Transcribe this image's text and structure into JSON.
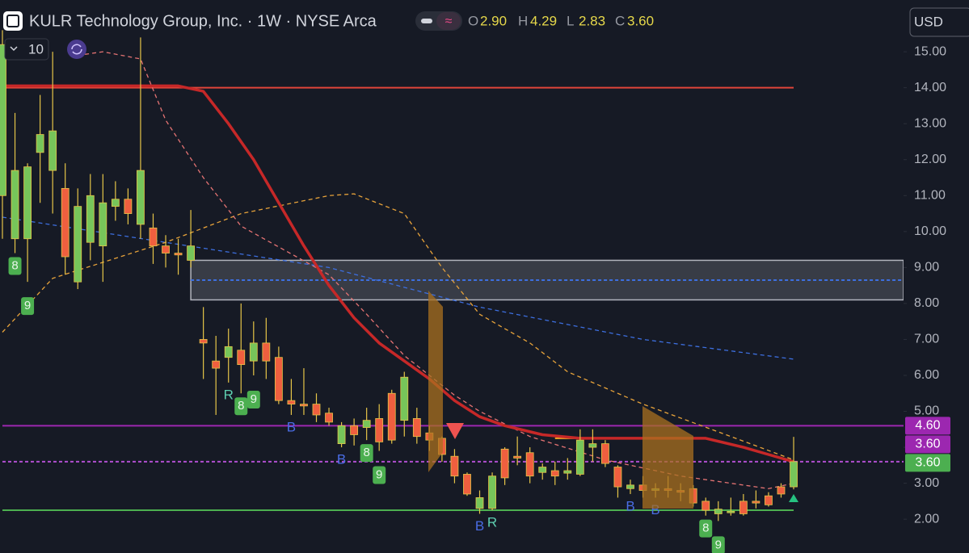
{
  "chart_data": {
    "type": "candlestick",
    "title": "KULR Technology Group, Inc. · 1W · NYSE Arca",
    "legend_keys": [
      "O",
      "H",
      "L",
      "C"
    ],
    "legend_values": [
      "2.90",
      "4.29",
      "2.83",
      "3.60"
    ],
    "interval_box": "10",
    "currency": "USD",
    "up_color": "#77c55a",
    "down_color": "#ef5f3f",
    "wick_color": "#e6c548",
    "open": [
      11.0,
      9.8,
      9.8,
      12.2,
      11.7,
      11.2,
      8.6,
      9.7,
      9.6,
      10.7,
      10.9,
      10.2,
      10.1,
      9.6,
      9.4,
      9.2,
      7.0,
      6.4,
      6.5,
      6.7,
      6.4,
      6.9,
      6.5,
      5.3,
      5.2,
      5.2,
      4.95,
      4.1,
      4.6,
      4.55,
      4.8,
      5.5,
      4.75,
      4.8,
      4.4,
      4.25,
      3.75,
      3.25,
      2.3,
      2.3,
      3.95,
      3.75,
      3.85,
      3.3,
      3.35,
      3.28,
      3.25,
      4.0,
      4.1,
      3.45,
      2.85,
      2.95,
      2.8,
      2.85,
      2.8,
      2.85,
      2.5,
      2.15,
      2.18,
      2.5,
      2.5,
      2.65,
      2.9,
      2.9
    ],
    "high": [
      15.6,
      13.3,
      11.9,
      13.8,
      15.0,
      11.9,
      11.2,
      11.6,
      11.6,
      11.4,
      11.2,
      15.4,
      10.5,
      9.9,
      9.8,
      10.6,
      7.9,
      7.1,
      7.3,
      8.0,
      7.5,
      7.6,
      6.8,
      5.9,
      6.2,
      5.5,
      5.1,
      4.7,
      4.8,
      5.1,
      5.2,
      5.6,
      6.1,
      5.1,
      4.6,
      4.3,
      3.95,
      3.3,
      2.8,
      3.3,
      4.0,
      4.3,
      4.0,
      3.55,
      3.6,
      3.7,
      4.5,
      4.5,
      4.2,
      3.5,
      3.1,
      3.2,
      3.0,
      3.2,
      3.0,
      2.95,
      2.6,
      2.5,
      2.6,
      2.7,
      2.8,
      2.75,
      3.0,
      4.29
    ],
    "low": [
      9.8,
      9.4,
      8.6,
      10.8,
      10.5,
      8.8,
      8.4,
      9.2,
      8.6,
      10.3,
      10.2,
      9.8,
      9.1,
      9.0,
      8.8,
      9.0,
      5.9,
      4.9,
      5.8,
      5.5,
      6.0,
      5.9,
      5.2,
      4.9,
      4.9,
      4.7,
      4.6,
      4.0,
      4.05,
      4.2,
      3.9,
      4.1,
      4.3,
      4.1,
      3.9,
      3.6,
      3.0,
      2.65,
      2.15,
      2.25,
      2.95,
      3.5,
      3.0,
      3.1,
      2.95,
      3.1,
      3.2,
      3.6,
      3.45,
      2.6,
      2.7,
      2.6,
      2.6,
      2.6,
      2.5,
      2.35,
      2.1,
      1.95,
      2.1,
      2.1,
      2.3,
      2.35,
      2.6,
      2.83
    ],
    "close": [
      15.2,
      11.7,
      11.8,
      12.7,
      12.8,
      9.3,
      10.7,
      11.0,
      10.8,
      10.9,
      10.5,
      11.7,
      9.6,
      9.4,
      9.35,
      9.6,
      6.9,
      6.2,
      6.8,
      6.3,
      6.9,
      6.4,
      5.3,
      5.2,
      5.15,
      4.9,
      4.7,
      4.6,
      4.35,
      4.75,
      4.15,
      4.2,
      5.95,
      4.3,
      4.2,
      3.8,
      3.2,
      2.7,
      2.6,
      3.2,
      3.15,
      3.7,
      3.2,
      3.45,
      3.2,
      3.35,
      4.2,
      4.1,
      3.55,
      2.9,
      2.95,
      2.8,
      2.85,
      2.8,
      2.75,
      2.45,
      2.25,
      2.28,
      2.22,
      2.15,
      2.45,
      2.4,
      2.7,
      3.6
    ],
    "ylim": [
      1.06,
      16.44
    ],
    "yticks": [
      {
        "value": 2,
        "label": "2.00"
      },
      {
        "value": 3,
        "label": "3.00"
      },
      {
        "value": 4,
        "label": "4.00"
      },
      {
        "value": 5,
        "label": "5.00"
      },
      {
        "value": 6,
        "label": "6.00"
      },
      {
        "value": 7,
        "label": "7.00"
      },
      {
        "value": 8,
        "label": "8.00"
      },
      {
        "value": 9,
        "label": "9.00"
      },
      {
        "value": 10,
        "label": "10.00"
      },
      {
        "value": 11,
        "label": "11.00"
      },
      {
        "value": 12,
        "label": "12.00"
      },
      {
        "value": 13,
        "label": "13.00"
      },
      {
        "value": 14,
        "label": "14.00"
      },
      {
        "value": 15,
        "label": "15.00"
      }
    ],
    "lines": [
      {
        "color": "#3d6fe0",
        "dashed": true,
        "x": [
          0,
          13,
          26,
          38,
          51,
          63
        ],
        "values": [
          10.4,
          9.7,
          9.0,
          7.9,
          7.0,
          6.45
        ]
      },
      {
        "color": "#e8a33a",
        "dashed": true,
        "x": [
          0,
          4,
          13,
          19,
          26,
          28,
          32,
          35,
          38,
          42,
          45,
          51,
          58,
          63
        ],
        "values": [
          7.2,
          8.7,
          9.7,
          10.5,
          11.0,
          11.05,
          10.5,
          9.0,
          7.7,
          6.9,
          6.1,
          5.2,
          4.3,
          3.65
        ]
      },
      {
        "color": "#e57373",
        "dashed": true,
        "x": [
          6,
          8,
          11,
          13,
          16,
          19,
          26,
          29,
          32,
          36,
          38,
          42,
          48,
          54,
          61,
          63
        ],
        "values": [
          14.9,
          15.0,
          14.8,
          13.1,
          11.5,
          10.15,
          8.8,
          7.7,
          6.55,
          5.45,
          5.0,
          4.3,
          3.65,
          3.2,
          2.85,
          3.0
        ]
      },
      {
        "color": "#c62828",
        "dashed": false,
        "x": [
          0,
          14,
          16,
          18,
          20,
          22,
          24,
          26,
          28,
          30,
          32,
          34,
          36,
          38,
          40,
          43,
          46,
          52,
          56,
          59,
          61,
          63
        ],
        "values": [
          14.05,
          14.05,
          13.9,
          13.0,
          12.0,
          10.8,
          9.6,
          8.5,
          7.6,
          6.9,
          6.4,
          5.9,
          5.3,
          4.85,
          4.6,
          4.35,
          4.25,
          4.25,
          4.25,
          4.0,
          3.8,
          3.6
        ]
      }
    ],
    "zones": [
      {
        "low": 8.1,
        "high": 9.2,
        "from": 15,
        "color": "#b2b5be"
      }
    ],
    "levels": [
      {
        "value": 14,
        "from": 0,
        "to": 63,
        "color": "#e0453a",
        "dashed": false
      },
      {
        "value": 14.05,
        "from": 0,
        "to": 14,
        "color": "#f5a623",
        "dashed": false
      },
      {
        "value": 8.65,
        "from": 15,
        "color": "#3d6fe0",
        "dashed": true
      },
      {
        "value": 4.6,
        "from": 0,
        "color": "#9c27b0",
        "dashed": false
      },
      {
        "value": 4.25,
        "from": 44,
        "to": 55,
        "color": "#f5a623",
        "dashed": false
      },
      {
        "value": 3.6,
        "from": 0,
        "color": "#b04fd0",
        "dashed": true
      },
      {
        "value": 2.25,
        "from": 0,
        "to": 63,
        "color": "#4caf50",
        "dashed": false
      }
    ],
    "price_labels": [
      {
        "value": 4.6,
        "label": "4.60",
        "color": "#9c27b0"
      },
      {
        "value": 3.6,
        "label": "3.60",
        "color": "#9c27b0"
      },
      {
        "value": 3.6,
        "label": "3.60",
        "color": "#4caf50"
      }
    ],
    "markers": [
      {
        "label": "8",
        "index": 1
      },
      {
        "label": "9",
        "index": 2
      },
      {
        "label": "R",
        "index": 18
      },
      {
        "label": "8",
        "index": 19
      },
      {
        "label": "9",
        "index": 20
      },
      {
        "label": "B",
        "index": 23
      },
      {
        "label": "B",
        "index": 27
      },
      {
        "label": "8",
        "index": 29
      },
      {
        "label": "9",
        "index": 30
      },
      {
        "label": "B",
        "index": 38
      },
      {
        "label": "R",
        "index": 39
      },
      {
        "label": "B",
        "index": 50
      },
      {
        "label": "B",
        "index": 52
      },
      {
        "label": "8",
        "index": 56
      },
      {
        "label": "9",
        "index": 57
      }
    ]
  }
}
